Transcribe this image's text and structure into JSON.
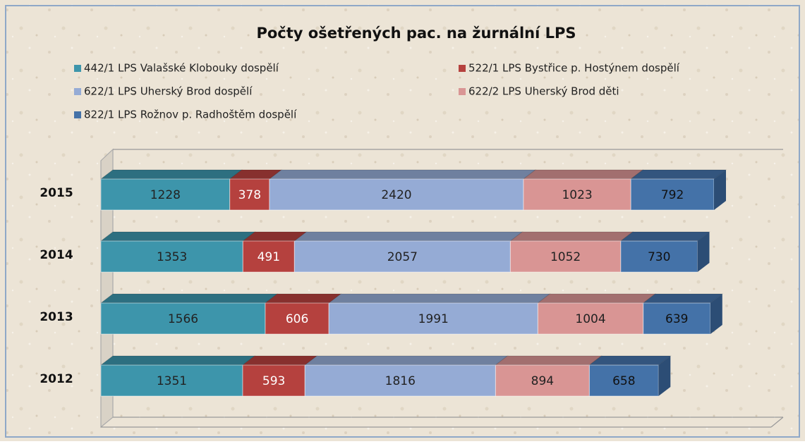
{
  "chart_data": {
    "type": "stacked-bar-horizontal",
    "title": "Počty ošetřených pac. na žurnální LPS",
    "categories": [
      "2015",
      "2014",
      "2013",
      "2012"
    ],
    "series": [
      {
        "name": "442/1 LPS Valašské Klobouky dospělí",
        "color": "#3d95ab",
        "values": [
          1228,
          1353,
          1566,
          1351
        ]
      },
      {
        "name": "522/1 LPS Bystřice p. Hostýnem dospělí",
        "color": "#b5413e",
        "values": [
          378,
          491,
          606,
          593
        ]
      },
      {
        "name": "622/1 LPS Uherský Brod dospělí",
        "color": "#95abd5",
        "values": [
          2420,
          2057,
          1991,
          1816
        ]
      },
      {
        "name": "622/2 LPS Uherský Brod děti",
        "color": "#d99594",
        "values": [
          1023,
          1052,
          1004,
          894
        ]
      },
      {
        "name": "822/1 LPS Rožnov p. Radhoštěm dospělí",
        "color": "#4472a8",
        "values": [
          792,
          730,
          639,
          658
        ]
      }
    ]
  }
}
